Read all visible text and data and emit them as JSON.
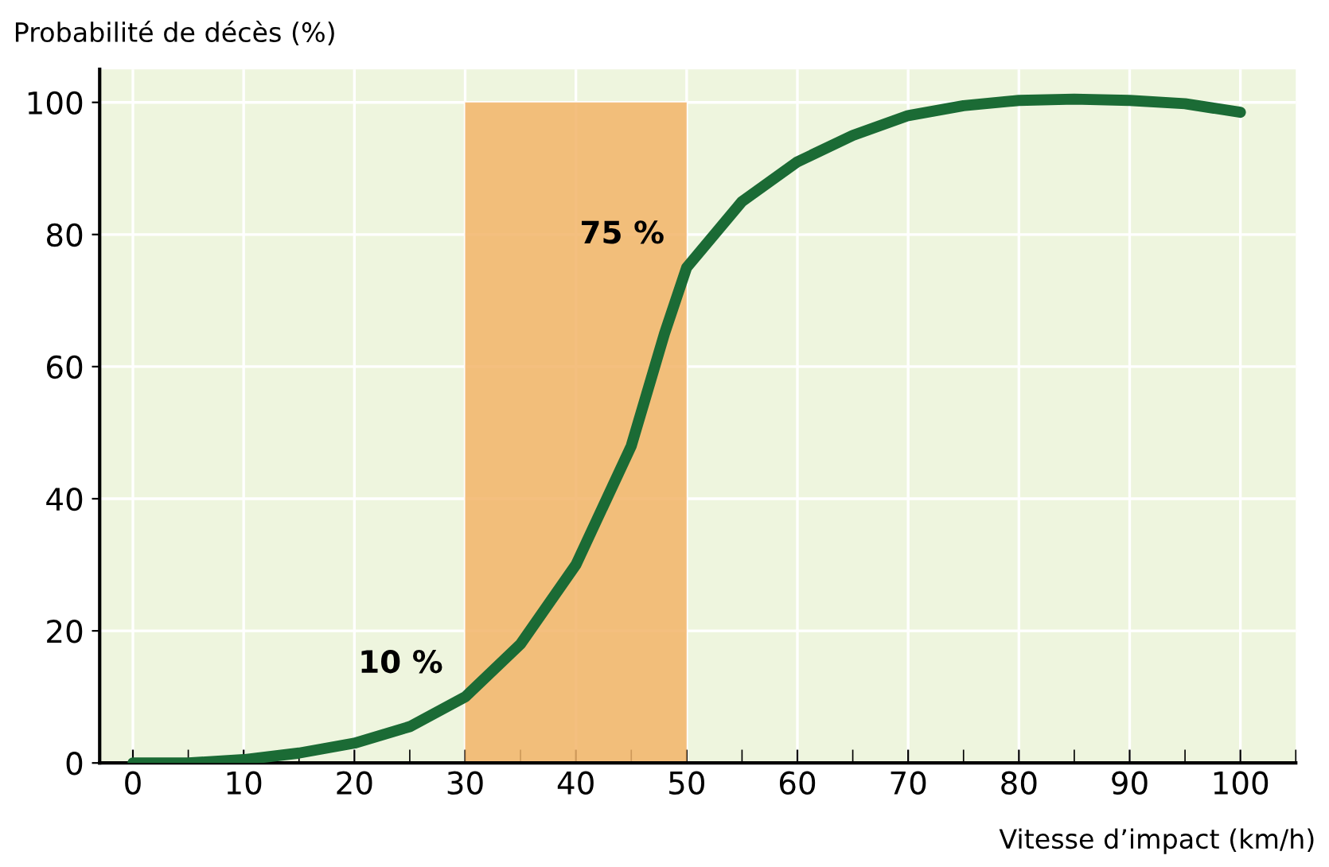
{
  "chart_data": {
    "type": "line",
    "ylabel": "Probabilité de décès (%)",
    "xlabel": "Vitesse d’impact (km/h)",
    "x": [
      0,
      5,
      10,
      15,
      20,
      25,
      30,
      35,
      40,
      45,
      48,
      50,
      55,
      60,
      65,
      70,
      75,
      80,
      85,
      90,
      95,
      100
    ],
    "series": [
      {
        "color": "#1b6b35",
        "values": [
          0,
          0,
          0.5,
          1.5,
          3,
          5.5,
          10,
          18,
          30,
          48,
          65,
          75,
          85,
          91,
          95,
          98,
          99.5,
          100.3,
          100.5,
          100.3,
          99.8,
          98.5
        ]
      }
    ],
    "xlim": [
      -3,
      105
    ],
    "ylim": [
      0,
      105
    ],
    "xticks": [
      0,
      10,
      20,
      30,
      40,
      50,
      60,
      70,
      80,
      90,
      100
    ],
    "yticks": [
      0,
      20,
      40,
      60,
      80,
      100
    ],
    "bands": [
      {
        "axis": "x",
        "from": 30,
        "to": 50,
        "color": "#f2b468"
      }
    ],
    "annotations": [
      {
        "text": "10 %",
        "x": 30,
        "y": 10
      },
      {
        "text": "75 %",
        "x": 50,
        "y": 75
      }
    ],
    "grid": true,
    "marker": "none",
    "line_style": "solid"
  }
}
